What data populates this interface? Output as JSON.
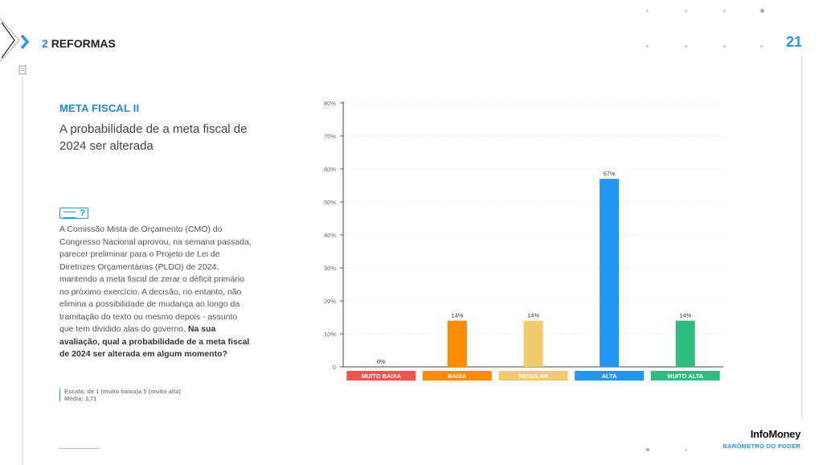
{
  "header": {
    "section_number": "2",
    "section_title": "REFORMAS",
    "page_number": "21"
  },
  "left_panel": {
    "title": "META FISCAL II",
    "subtitle": "A probabilidade de a meta fiscal de 2024 ser alterada",
    "badge_symbol": "?",
    "body": "A Comissão Mista de Orçamento (CMO) do Congresso Nacional aprovou, na semana passada, parecer preliminar para o Projeto de Lei de Diretrizes Orçamentárias (PLDO) de 2024, mantendo a meta fiscal de zerar o déficit primário no próximo exercício. A decisão, no entanto, não elimina a possibilidade de mudança ao longo da tramitação do texto ou mesmo depois - assunto que tem dividido alas do governo.",
    "question": "Na sua avaliação, qual a probabilidade de a meta fiscal de 2024 ser alterada em algum momento?",
    "scale_note": "Escala: de 1 (muito baixa)a 5 (muito alta)",
    "average_note": "Média: 3,71"
  },
  "brand": {
    "name": "InfoMoney",
    "subtitle": "BARÔMETRO DO PODER"
  },
  "chart_data": {
    "type": "bar",
    "categories": [
      "MUITO BAIXA",
      "BAIXA",
      "REGULAR",
      "ALTA",
      "MUITO ALTA"
    ],
    "values": [
      0,
      14,
      14,
      57,
      14
    ],
    "value_labels": [
      "0%",
      "14%",
      "14%",
      "57%",
      "14%"
    ],
    "y_ticks": [
      "0",
      "10%",
      "20%",
      "30%",
      "40%",
      "50%",
      "60%",
      "70%",
      "80%"
    ],
    "ylim": [
      0,
      80
    ],
    "grid": true,
    "colors": {
      "bars": [
        "#ef5350",
        "#fb8c00",
        "#f0ca6c",
        "#2196f3",
        "#2ebd80"
      ],
      "labels": [
        "#ef5350",
        "#fb8c00",
        "#f0ca6c",
        "#2196f3",
        "#2ebd80"
      ]
    }
  }
}
